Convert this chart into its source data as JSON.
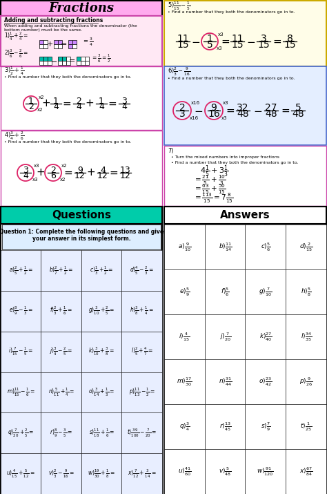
{
  "title": "Fractions",
  "title_bg": "#ffaaee",
  "pink_box_bg": "#ffe8f4",
  "pink_box_edge": "#cc44aa",
  "teal_color": "#00ccaa",
  "yellow_box_bg": "#fffde8",
  "yellow_box_edge": "#ccaa00",
  "blue_box_bg": "#e4eeff",
  "blue_box_edge": "#4466cc",
  "circle_color": "#dd2266",
  "purple_grid": "#cc88ff",
  "teal_grid": "#00bbaa",
  "q_cell_bg": "#e8eeff",
  "q_header_bg": "#00ccaa",
  "q_instr_bg": "#ddeeff",
  "questions": [
    [
      "$a)\\frac{2}{5}+\\frac{1}{2}=$",
      "$b)\\frac{2}{7}+\\frac{1}{2}=$",
      "$c)\\frac{1}{3}+\\frac{1}{2}=$",
      "$d)\\frac{4}{5}-\\frac{2}{3}=$"
    ],
    [
      "$e)\\frac{8}{9}-\\frac{1}{3}=$",
      "$f)\\frac{2}{3}+\\frac{1}{6}=$",
      "$g)\\frac{3}{10}+\\frac{2}{5}=$",
      "$h)\\frac{3}{8}+\\frac{1}{4}=$"
    ],
    [
      "$i)\\frac{7}{15}-\\frac{1}{5}=$",
      "$j)\\frac{3}{4}-\\frac{2}{5}=$",
      "$k)\\frac{3}{10}+\\frac{3}{8}=$",
      "$l)\\frac{2}{5}+\\frac{4}{7}=$"
    ],
    [
      "$m)\\frac{11}{15}-\\frac{1}{6}=$",
      "$n)\\frac{5}{11}+\\frac{1}{4}=$",
      "$o)\\frac{3}{14}+\\frac{1}{3}=$",
      "$p)\\frac{11}{13}-\\frac{1}{2}=$"
    ],
    [
      "$q)\\frac{7}{20}+\\frac{2}{5}=$",
      "$r)\\frac{8}{9}-\\frac{3}{5}=$",
      "$s)\\frac{11}{18}+\\frac{1}{6}=$",
      "$t)\\frac{39}{100}-\\frac{7}{20}=$"
    ],
    [
      "$u)\\frac{4}{15}+\\frac{5}{12}=$",
      "$v)\\frac{2}{3}-\\frac{9}{16}=$",
      "$w)\\frac{19}{30}+\\frac{1}{8}=$",
      "$x)\\frac{7}{12}+\\frac{3}{14}=$"
    ]
  ],
  "answers": [
    [
      "$a)\\frac{9}{10}$",
      "$b)\\frac{11}{14}$",
      "$c)\\frac{5}{6}$",
      "$d)\\frac{2}{15}$"
    ],
    [
      "$e)\\frac{5}{9}$",
      "$f)\\frac{5}{6}$",
      "$g)\\frac{7}{10}$",
      "$h)\\frac{5}{8}$"
    ],
    [
      "$i)\\frac{4}{15}$",
      "$j)\\frac{7}{20}$",
      "$k)\\frac{27}{40}$",
      "$l)\\frac{34}{35}$"
    ],
    [
      "$m)\\frac{17}{30}$",
      "$n)\\frac{31}{44}$",
      "$o)\\frac{23}{42}$",
      "$p)\\frac{9}{26}$"
    ],
    [
      "$q)\\frac{3}{4}$",
      "$r)\\frac{13}{45}$",
      "$s)\\frac{7}{9}$",
      "$t)\\frac{1}{25}$"
    ],
    [
      "$u)\\frac{41}{60}$",
      "$v)\\frac{5}{48}$",
      "$w)\\frac{91}{120}$",
      "$x)\\frac{67}{84}$"
    ]
  ]
}
